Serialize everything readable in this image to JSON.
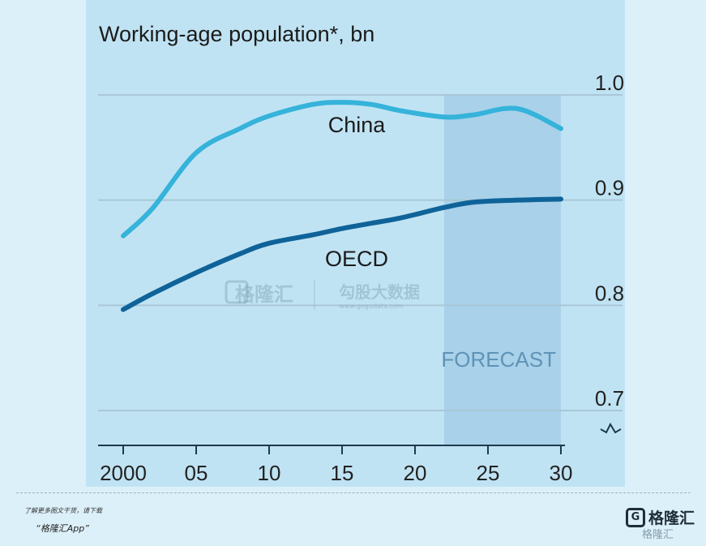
{
  "chart_data": {
    "type": "line",
    "title": "Working-age population*, bn",
    "x": [
      2000,
      2002,
      2005,
      2008,
      2010,
      2013,
      2015,
      2017,
      2019,
      2022,
      2024,
      2027,
      2030
    ],
    "xticks": [
      "2000",
      "05",
      "10",
      "15",
      "20",
      "25",
      "30"
    ],
    "xtick_values": [
      2000,
      2005,
      2010,
      2015,
      2020,
      2025,
      2030
    ],
    "xlim": [
      2000,
      2030
    ],
    "yticks": [
      "0.7",
      "0.8",
      "0.9",
      "1.0"
    ],
    "ytick_values": [
      0.7,
      0.8,
      0.9,
      1.0
    ],
    "ylim": [
      0.69,
      1.0
    ],
    "y_axis_break": true,
    "grid": true,
    "forecast": {
      "label": "FORECAST",
      "from": 2022,
      "to": 2030
    },
    "series": [
      {
        "name": "China",
        "color": "#35b3da",
        "values": [
          0.866,
          0.892,
          0.945,
          0.968,
          0.98,
          0.991,
          0.993,
          0.991,
          0.985,
          0.979,
          0.981,
          0.987,
          0.968
        ]
      },
      {
        "name": "OECD",
        "color": "#0f6399",
        "values": [
          0.796,
          0.811,
          0.831,
          0.849,
          0.859,
          0.867,
          0.873,
          0.878,
          0.883,
          0.893,
          0.898,
          0.9,
          0.901
        ]
      }
    ]
  },
  "watermark": {
    "brand": "格隆汇",
    "subtitle": "勾股大数据",
    "url": "www.gogudata.com"
  },
  "footer": {
    "note": "了解更多图文干货，请下载",
    "app": "“格隆汇App”",
    "brand_badge": "G",
    "brand_name": "格隆汇",
    "brand_sub": "格隆汇"
  },
  "colors": {
    "page": "#dcf0f9",
    "plot": "#c0e3f3",
    "forecast": "#a9d1e9",
    "grid": "#a9c7d6"
  }
}
